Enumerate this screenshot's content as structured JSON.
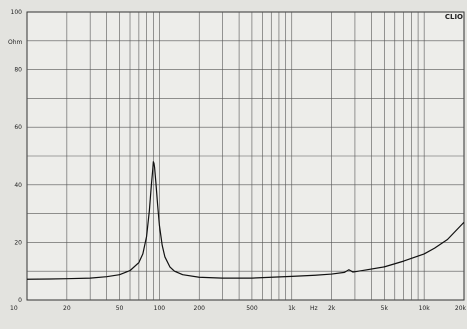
{
  "brand": "CLIO",
  "chart_data": {
    "type": "line",
    "title": "",
    "xscale": "log",
    "xlim": [
      10,
      20000
    ],
    "ylim": [
      0,
      100
    ],
    "ylabel": "Ohm",
    "x_unit_label": "Hz",
    "grid": true,
    "x_tick_labels": [
      {
        "v": 10,
        "t": "10"
      },
      {
        "v": 20,
        "t": "20"
      },
      {
        "v": 50,
        "t": "50"
      },
      {
        "v": 100,
        "t": "100"
      },
      {
        "v": 200,
        "t": "200"
      },
      {
        "v": 500,
        "t": "500"
      },
      {
        "v": 1000,
        "t": "1k"
      },
      {
        "v": 2000,
        "t": "2k"
      },
      {
        "v": 5000,
        "t": "5k"
      },
      {
        "v": 10000,
        "t": "10k"
      },
      {
        "v": 20000,
        "t": "20k"
      }
    ],
    "x_grid": [
      20,
      30,
      40,
      50,
      60,
      70,
      80,
      90,
      100,
      200,
      300,
      400,
      500,
      600,
      700,
      800,
      900,
      1000,
      2000,
      3000,
      4000,
      5000,
      6000,
      7000,
      8000,
      9000,
      10000
    ],
    "y_ticks": [
      0,
      20,
      40,
      60,
      80,
      100
    ],
    "y_grid": [
      10,
      20,
      30,
      40,
      50,
      60,
      70,
      80,
      90
    ],
    "series": [
      {
        "color": "#111111",
        "points": [
          [
            10,
            7.2
          ],
          [
            15,
            7.3
          ],
          [
            20,
            7.4
          ],
          [
            30,
            7.6
          ],
          [
            40,
            8.1
          ],
          [
            50,
            8.8
          ],
          [
            60,
            10.2
          ],
          [
            70,
            13.0
          ],
          [
            75,
            16.0
          ],
          [
            80,
            22.0
          ],
          [
            84,
            31.0
          ],
          [
            87,
            40.0
          ],
          [
            89,
            45.0
          ],
          [
            90,
            48.0
          ],
          [
            91,
            47.5
          ],
          [
            92,
            46.0
          ],
          [
            94,
            41.0
          ],
          [
            97,
            33.0
          ],
          [
            100,
            26.0
          ],
          [
            105,
            19.0
          ],
          [
            110,
            15.0
          ],
          [
            120,
            11.5
          ],
          [
            130,
            10.0
          ],
          [
            150,
            8.8
          ],
          [
            200,
            7.9
          ],
          [
            300,
            7.6
          ],
          [
            500,
            7.6
          ],
          [
            700,
            7.9
          ],
          [
            1000,
            8.2
          ],
          [
            1500,
            8.6
          ],
          [
            2000,
            9.0
          ],
          [
            2500,
            9.6
          ],
          [
            2700,
            10.5
          ],
          [
            2900,
            9.7
          ],
          [
            3500,
            10.3
          ],
          [
            5000,
            11.5
          ],
          [
            7000,
            13.5
          ],
          [
            10000,
            16.0
          ],
          [
            12000,
            18.0
          ],
          [
            15000,
            21.0
          ],
          [
            20000,
            27.0
          ]
        ]
      }
    ]
  }
}
